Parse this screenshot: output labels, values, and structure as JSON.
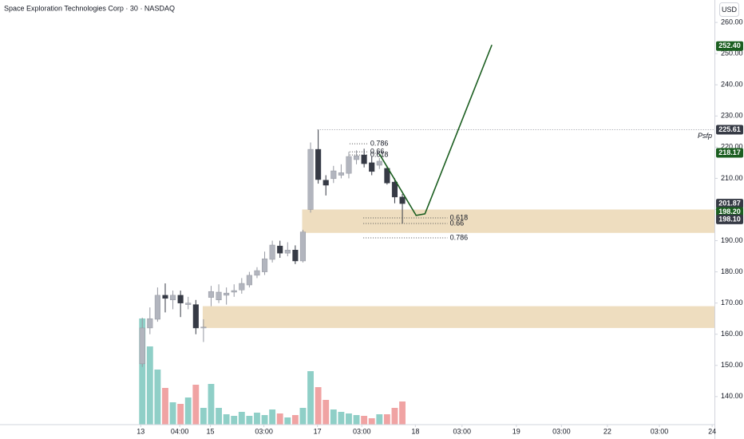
{
  "chart_data": {
    "type": "candlestick",
    "title": "Space Exploration Technologies Corp · 30 · NASDAQ",
    "currency": "USD",
    "x": [
      0,
      1,
      2,
      3,
      4,
      5,
      6,
      7,
      8,
      9,
      10,
      11,
      12,
      13,
      14,
      15,
      16,
      17,
      18,
      19,
      20,
      21,
      22,
      23,
      24,
      25,
      26,
      27,
      28,
      29,
      30,
      31,
      32,
      33,
      34
    ],
    "open": [
      150.5,
      162,
      164.8,
      172.5,
      171,
      172.5,
      169.5,
      169.5,
      162,
      171.8,
      171,
      172.5,
      173.5,
      174.2,
      175.8,
      178.9,
      180,
      184,
      188.3,
      186,
      187,
      183.5,
      200,
      219.3,
      209.4,
      209.9,
      211,
      211.6,
      216,
      217.5,
      215,
      214.2,
      213.2,
      208.8,
      204
    ],
    "high": [
      165.3,
      168.6,
      175,
      176.3,
      174,
      174,
      172,
      171,
      164.8,
      175.5,
      176,
      175,
      176,
      178,
      180,
      181.5,
      186.5,
      190,
      190,
      189.5,
      188.5,
      193.5,
      221.5,
      225.6,
      211,
      214,
      214.5,
      218.5,
      219,
      219.5,
      217,
      216.5,
      214,
      210,
      205
    ],
    "low": [
      149.5,
      160,
      164,
      167,
      168,
      165.5,
      168,
      160,
      157.5,
      169,
      170,
      169.5,
      172,
      173,
      175,
      178,
      179,
      183,
      184.5,
      185,
      182.5,
      183,
      199,
      208.3,
      204.5,
      208.5,
      210,
      210,
      214.5,
      213.5,
      211,
      213,
      208,
      202,
      195.5
    ],
    "close": [
      162,
      165,
      172.5,
      171.5,
      172.5,
      170,
      170,
      162,
      162.3,
      173.7,
      173.5,
      173.2,
      174,
      176.3,
      178.9,
      180.4,
      184.2,
      188.6,
      186,
      187,
      183.5,
      192.8,
      219.3,
      209.6,
      207.8,
      212.4,
      211.8,
      217,
      217.2,
      214.7,
      212.2,
      215.5,
      208.5,
      204,
      201.9
    ],
    "volume": [
      133,
      98,
      69,
      46,
      28,
      26,
      34,
      50,
      21,
      51,
      21,
      13,
      11,
      16,
      11,
      15,
      12,
      19,
      14,
      9,
      12,
      21,
      67,
      47,
      31,
      19,
      16,
      14,
      12,
      11,
      8,
      13,
      13,
      21,
      29
    ],
    "up_color": "#b2b5be",
    "down_color": "#363a45",
    "volume_up_color": "#8fcfc7",
    "volume_down_color": "#f0a3a3",
    "xlim": [
      -18.6,
      74.8
    ],
    "xticks": [
      {
        "value": -0.2,
        "label": "13"
      },
      {
        "value": 4.9,
        "label": "04:00"
      },
      {
        "value": 8.9,
        "label": "15"
      },
      {
        "value": 15.9,
        "label": "03:00"
      },
      {
        "value": 22.9,
        "label": "17"
      },
      {
        "value": 28.7,
        "label": "03:00"
      },
      {
        "value": 35.7,
        "label": "18"
      },
      {
        "value": 41.8,
        "label": "03:00"
      },
      {
        "value": 48.9,
        "label": "19"
      },
      {
        "value": 54.8,
        "label": "03:00"
      },
      {
        "value": 60.8,
        "label": "22"
      },
      {
        "value": 67.6,
        "label": "03:00"
      },
      {
        "value": 74.5,
        "label": "24"
      }
    ],
    "ylim": [
      131,
      267.2
    ],
    "yticks": [
      {
        "value": 140,
        "label": "140.00"
      },
      {
        "value": 150,
        "label": "150.00"
      },
      {
        "value": 160,
        "label": "160.00"
      },
      {
        "value": 170,
        "label": "170.00"
      },
      {
        "value": 180,
        "label": "180.00"
      },
      {
        "value": 190,
        "label": "190.00"
      },
      {
        "value": 200,
        "label": "200.00"
      },
      {
        "value": 210,
        "label": "210.00"
      },
      {
        "value": 220,
        "label": "220.00"
      },
      {
        "value": 230,
        "label": "230.00"
      },
      {
        "value": 240,
        "label": "240.00"
      },
      {
        "value": 250,
        "label": "250.00"
      },
      {
        "value": 260,
        "label": "260.00"
      }
    ],
    "price_tags": [
      {
        "value": 252.4,
        "label": "252.40",
        "color": "#1b5e20"
      },
      {
        "value": 225.61,
        "label": "225.61",
        "color": "#363a45"
      },
      {
        "value": 218.17,
        "label": "218.17",
        "color": "#1b5e20"
      },
      {
        "value": 201.87,
        "label": "201.87",
        "color": "#363a45"
      },
      {
        "value": 198.2,
        "label": "198.20",
        "color": "#1b5e20"
      },
      {
        "value": 198.1,
        "label": "198.10",
        "color": "#363a45"
      }
    ],
    "zones": [
      {
        "from": 20.9,
        "low": 192.5,
        "high": 200,
        "color": "#ecd9b8"
      },
      {
        "from": 7.9,
        "low": 162,
        "high": 169,
        "color": "#ecd9b8"
      }
    ],
    "levels": [
      {
        "value": 225.61,
        "from": 22.9,
        "label": "Psfp"
      }
    ],
    "fib_levels": [
      {
        "value": 221.1,
        "from": 27.1,
        "to": 29.5,
        "label": "0.786"
      },
      {
        "value": 218.5,
        "from": 27.1,
        "to": 29.5,
        "label": "0.66"
      },
      {
        "value": 217.5,
        "from": 27.1,
        "to": 29.5,
        "label": "0.618"
      },
      {
        "value": 197.3,
        "from": 28.9,
        "to": 39.9,
        "label": "0.618"
      },
      {
        "value": 195.5,
        "from": 28.9,
        "to": 39.9,
        "label": "0.66"
      },
      {
        "value": 190.9,
        "from": 28.9,
        "to": 39.9,
        "label": "0.786"
      }
    ],
    "projection": {
      "x": [
        31,
        35.8,
        36.95,
        45.7
      ],
      "values": [
        217.8,
        198.1,
        198.6,
        252.8
      ],
      "color": "#1b5e20"
    }
  }
}
